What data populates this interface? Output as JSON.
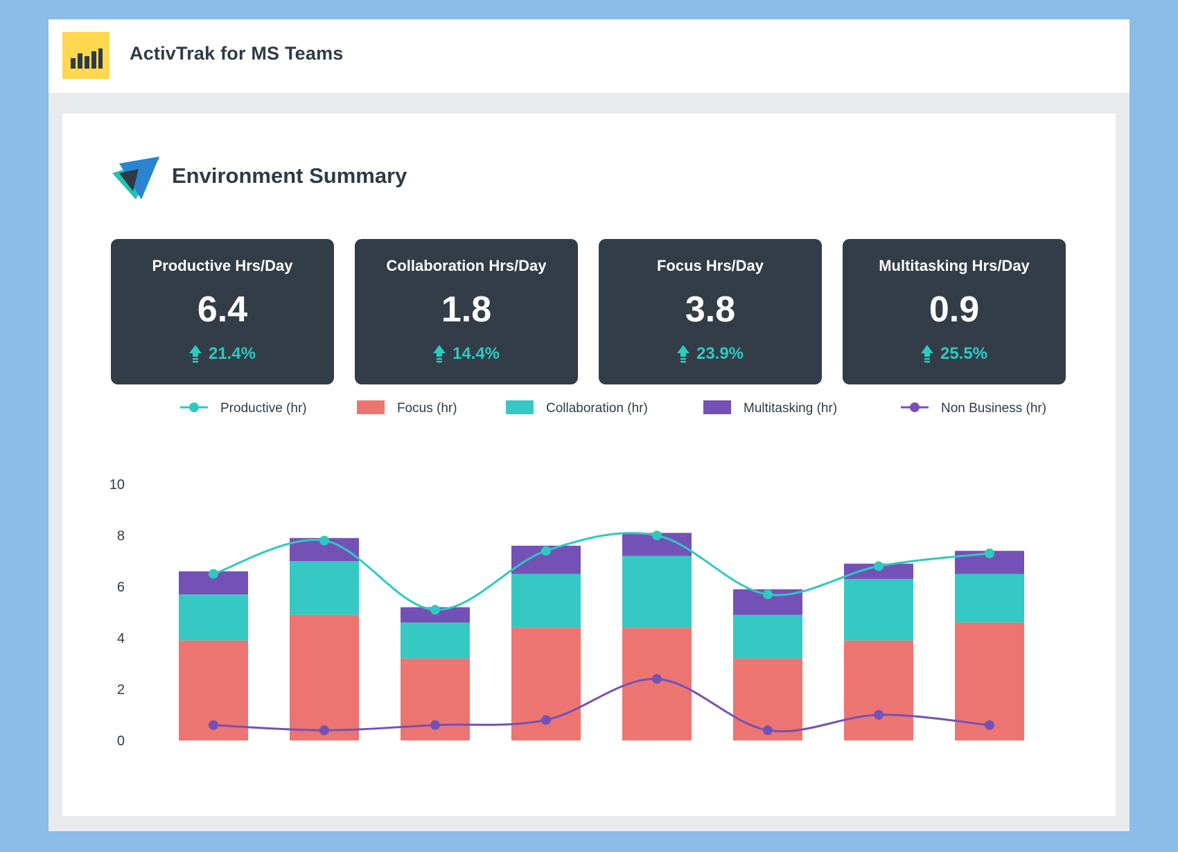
{
  "app": {
    "title": "ActivTrak for MS Teams",
    "logo_icon": "bar-chart-icon"
  },
  "section": {
    "title": "Environment Summary",
    "icon": "activtrak-triangle-logo-icon"
  },
  "kpis": [
    {
      "label": "Productive Hrs/Day",
      "value": "6.4",
      "change": "21.4%",
      "direction": "up"
    },
    {
      "label": "Collaboration Hrs/Day",
      "value": "1.8",
      "change": "14.4%",
      "direction": "up"
    },
    {
      "label": "Focus Hrs/Day",
      "value": "3.8",
      "change": "23.9%",
      "direction": "up"
    },
    {
      "label": "Multitasking Hrs/Day",
      "value": "0.9",
      "change": "25.5%",
      "direction": "up"
    }
  ],
  "colors": {
    "productive": "#2ec9c0",
    "focus": "#ed7571",
    "collaboration": "#36c9c3",
    "multitasking": "#7451b7",
    "non_business": "#7451b7",
    "kpi_bg": "#323d47",
    "accent_yellow": "#ffd84f"
  },
  "chart_data": {
    "type": "bar",
    "stacked": true,
    "legend_position": "top",
    "ylim": [
      0,
      10
    ],
    "yticks": [
      "0",
      "2",
      "4",
      "6",
      "8",
      "10"
    ],
    "xlabel": "",
    "ylabel": "",
    "grid": false,
    "legend": [
      {
        "name": "Productive (hr)",
        "kind": "line"
      },
      {
        "name": "Focus (hr)",
        "kind": "bar"
      },
      {
        "name": "Collaboration (hr)",
        "kind": "bar"
      },
      {
        "name": "Multitasking (hr)",
        "kind": "bar"
      },
      {
        "name": "Non Business (hr)",
        "kind": "line"
      }
    ],
    "series": [
      {
        "name": "Focus (hr)",
        "kind": "bar",
        "values": [
          3.9,
          4.9,
          3.2,
          4.4,
          4.4,
          3.2,
          3.9,
          4.6
        ]
      },
      {
        "name": "Collaboration (hr)",
        "kind": "bar",
        "values": [
          1.8,
          2.1,
          1.4,
          2.1,
          2.8,
          1.7,
          2.4,
          1.9
        ]
      },
      {
        "name": "Multitasking (hr)",
        "kind": "bar",
        "values": [
          0.9,
          0.9,
          0.6,
          1.1,
          0.9,
          1.0,
          0.6,
          0.9
        ]
      },
      {
        "name": "Productive (hr)",
        "kind": "line",
        "values": [
          6.5,
          7.8,
          5.1,
          7.4,
          8.0,
          5.7,
          6.8,
          7.3
        ]
      },
      {
        "name": "Non Business (hr)",
        "kind": "line",
        "values": [
          0.6,
          0.4,
          0.6,
          0.8,
          2.4,
          0.4,
          1.0,
          0.6
        ]
      }
    ]
  }
}
